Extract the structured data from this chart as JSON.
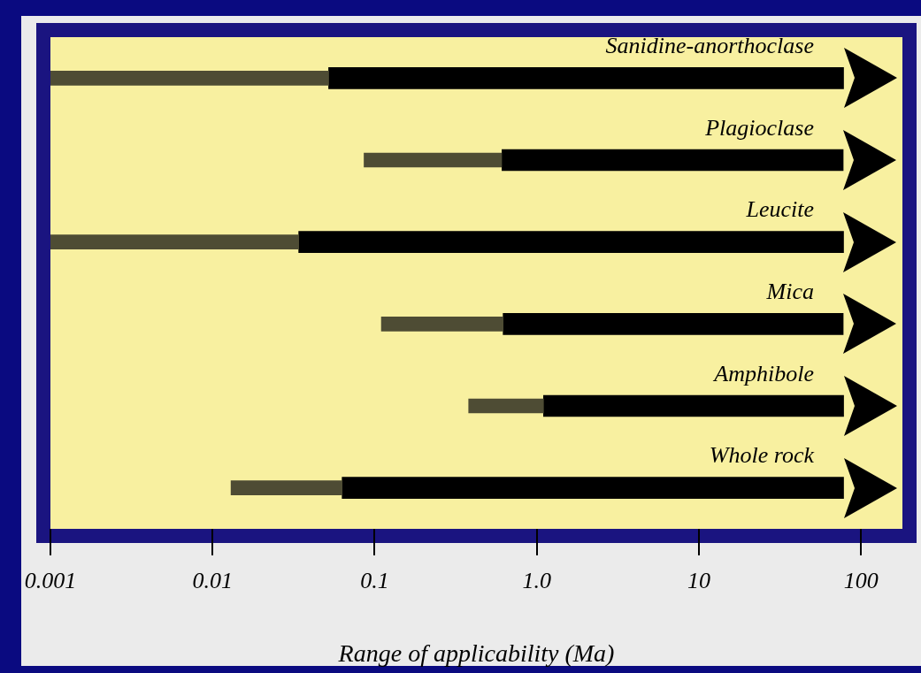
{
  "chart_data": {
    "type": "bar",
    "orientation": "horizontal",
    "xlabel": "Range of applicability (Ma)",
    "categories": [
      "Sanidine-anorthoclase",
      "Plagioclase",
      "Leucite",
      "Mica",
      "Amphibole",
      "Whole rock"
    ],
    "series": [
      {
        "color": "#4e4c34",
        "base": [
          0.001,
          0.086,
          0.001,
          0.11,
          0.38,
          0.013
        ],
        "values": [
          0.051,
          0.52,
          0.033,
          0.51,
          0.72,
          0.05
        ]
      },
      {
        "color": "#000000",
        "base": [
          0.052,
          0.61,
          0.034,
          0.62,
          1.1,
          0.063
        ],
        "values": [
          78,
          77,
          78,
          77,
          77,
          78
        ]
      }
    ],
    "log": "x",
    "xlim": [
      0.001,
      180
    ],
    "xticks": [
      {
        "value": 0.001,
        "label": "0.001"
      },
      {
        "value": 0.01,
        "label": "0.01"
      },
      {
        "value": 0.1,
        "label": "0.1"
      },
      {
        "value": 1,
        "label": "1.0"
      },
      {
        "value": 10,
        "label": "10"
      },
      {
        "value": 100,
        "label": "100"
      }
    ],
    "tick_labels": "x",
    "legend": false
  }
}
